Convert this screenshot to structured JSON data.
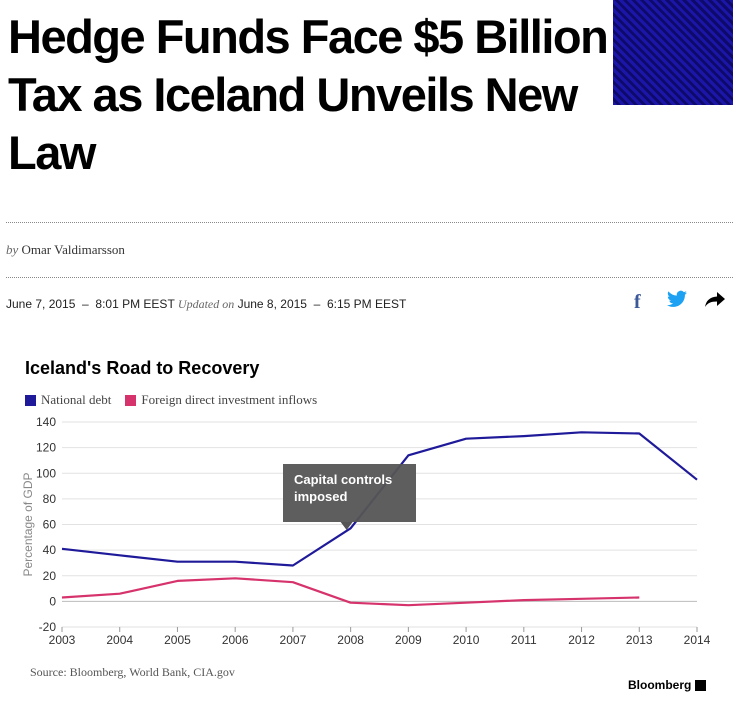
{
  "article": {
    "headline_lines": [
      "Hedge Funds Face $5 Billion",
      "Tax as Iceland Unveils New",
      "Law"
    ],
    "byline_prefix": "by",
    "author": "Omar Valdimarsson",
    "published": "June 7, 2015  –  8:01 PM EEST",
    "updated_label": "Updated on",
    "updated": "June 8, 2015  –  6:15 PM EEST"
  },
  "share": {
    "facebook_icon": "f",
    "twitter_icon": "🐦",
    "forward_icon": "➦"
  },
  "chart_data": {
    "type": "line",
    "title": "Iceland's Road to Recovery",
    "ylabel": "Percentage of GDP",
    "xlabel": "",
    "x": [
      2003,
      2004,
      2005,
      2006,
      2007,
      2008,
      2009,
      2010,
      2011,
      2012,
      2013,
      2014
    ],
    "ylim": [
      -20,
      140
    ],
    "yticks": [
      -20,
      0,
      20,
      40,
      60,
      80,
      100,
      120,
      140
    ],
    "grid": true,
    "legend": "top-left",
    "series": [
      {
        "name": "National debt",
        "color": "#1f1a99",
        "values": [
          41,
          36,
          31,
          31,
          28,
          57,
          114,
          127,
          129,
          132,
          131,
          95
        ]
      },
      {
        "name": "Foreign direct investment inflows",
        "color": "#d6336c",
        "values": [
          3,
          6,
          16,
          18,
          15,
          -1,
          -3,
          -1,
          1,
          2,
          3,
          null
        ]
      }
    ],
    "annotation": {
      "text": "Capital controls imposed",
      "x": 2008
    },
    "source": "Source: Bloomberg, World Bank, CIA.gov",
    "brand": "Bloomberg"
  }
}
